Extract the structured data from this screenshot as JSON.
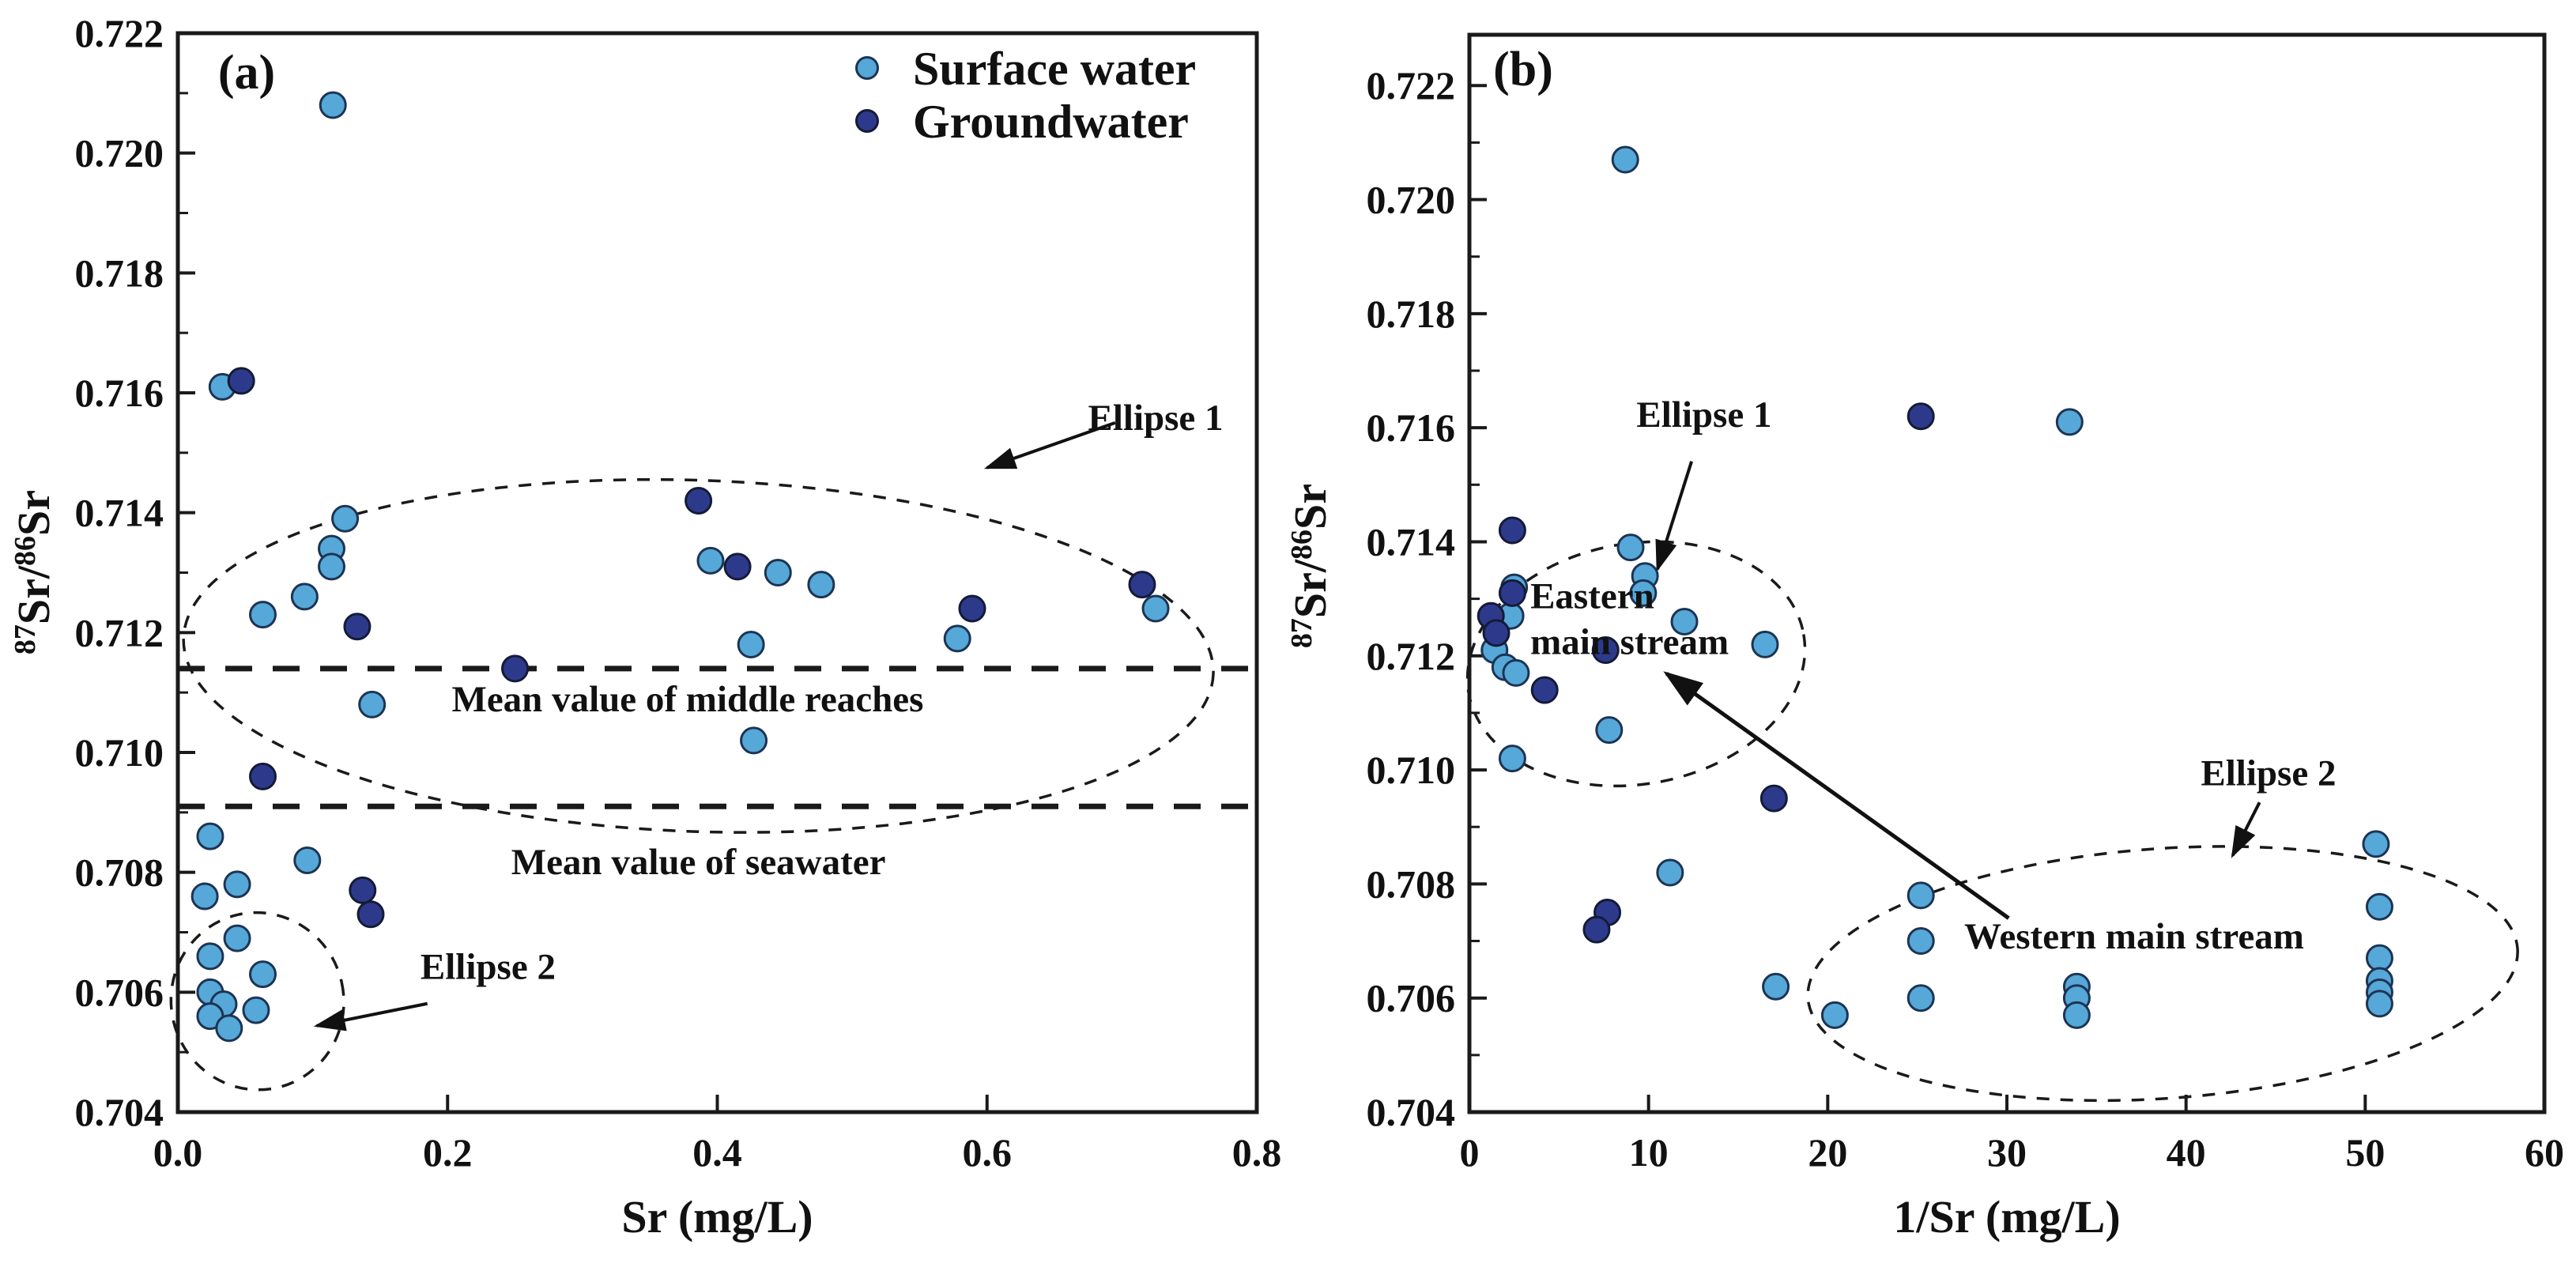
{
  "figure": {
    "background": "#ffffff",
    "colors": {
      "surface_fill": "#55A8D7",
      "surface_stroke": "#1d3454",
      "ground_fill": "#2D3A8C",
      "ground_stroke": "#141B36",
      "axis": "#1a1a1a",
      "dashed_line": "#1a1a1a"
    }
  },
  "legend": {
    "items": [
      {
        "label": "Surface water",
        "series": "surface"
      },
      {
        "label": "Groundwater",
        "series": "ground"
      }
    ],
    "position": "top-right-of-panel-a"
  },
  "chart_data": [
    {
      "panel": "a",
      "type": "scatter",
      "panel_label": "(a)",
      "xlabel": "Sr (mg/L)",
      "ylabel": "87Sr/86Sr",
      "ylabel_parts": [
        "87",
        "Sr/",
        "86",
        "Sr"
      ],
      "xlim": [
        0,
        0.8
      ],
      "ylim": [
        0.704,
        0.722
      ],
      "grid": false,
      "xticks": {
        "values": [
          0,
          0.2,
          0.4,
          0.6,
          0.8
        ],
        "labels": [
          "0.0",
          "0.2",
          "0.4",
          "0.6",
          "0.8"
        ]
      },
      "yticks": {
        "values": [
          0.704,
          0.706,
          0.708,
          0.71,
          0.712,
          0.714,
          0.716,
          0.718,
          0.72,
          0.722
        ],
        "labels": [
          "0.704",
          "0.706",
          "0.708",
          "0.710",
          "0.712",
          "0.714",
          "0.716",
          "0.718",
          "0.720",
          "0.722"
        ]
      },
      "minor_y_step": 0.001,
      "series": [
        {
          "name": "Surface water",
          "color_key": "surface",
          "points": [
            [
              0.115,
              0.7208
            ],
            [
              0.033,
              0.7161
            ],
            [
              0.124,
              0.7139
            ],
            [
              0.114,
              0.7134
            ],
            [
              0.114,
              0.7131
            ],
            [
              0.094,
              0.7126
            ],
            [
              0.063,
              0.7123
            ],
            [
              0.144,
              0.7108
            ],
            [
              0.395,
              0.7132
            ],
            [
              0.445,
              0.713
            ],
            [
              0.477,
              0.7128
            ],
            [
              0.425,
              0.7118
            ],
            [
              0.427,
              0.7102
            ],
            [
              0.578,
              0.7119
            ],
            [
              0.725,
              0.7124
            ],
            [
              0.024,
              0.7086
            ],
            [
              0.096,
              0.7082
            ],
            [
              0.044,
              0.7078
            ],
            [
              0.02,
              0.7076
            ],
            [
              0.044,
              0.7069
            ],
            [
              0.024,
              0.7066
            ],
            [
              0.063,
              0.7063
            ],
            [
              0.024,
              0.706
            ],
            [
              0.034,
              0.7058
            ],
            [
              0.058,
              0.7057
            ],
            [
              0.024,
              0.7056
            ],
            [
              0.038,
              0.7054
            ]
          ]
        },
        {
          "name": "Groundwater",
          "color_key": "ground",
          "points": [
            [
              0.047,
              0.7162
            ],
            [
              0.386,
              0.7142
            ],
            [
              0.415,
              0.7131
            ],
            [
              0.133,
              0.7121
            ],
            [
              0.25,
              0.7114
            ],
            [
              0.063,
              0.7096
            ],
            [
              0.137,
              0.7077
            ],
            [
              0.143,
              0.7073
            ],
            [
              0.589,
              0.7124
            ],
            [
              0.715,
              0.7128
            ]
          ]
        }
      ],
      "ref_lines": [
        {
          "value": 0.7114,
          "label": "Mean value of middle reaches",
          "label_at": [
            0.378,
            0.7109
          ]
        },
        {
          "value": 0.7091,
          "label": "Mean value of seawater",
          "label_at": [
            0.386,
            0.70818
          ]
        }
      ],
      "ellipses": [
        {
          "name": "Ellipse 1",
          "cx": 0.386,
          "cy": 0.71161,
          "rx": 0.382,
          "ry": 0.00293,
          "rot": 2
        },
        {
          "name": "Ellipse 2",
          "cx": 0.059,
          "cy": 0.70585,
          "rx": 0.064,
          "ry": 0.00148,
          "rot": -12
        }
      ],
      "labels": [
        {
          "text": "Ellipse 1",
          "x": 0.725,
          "y": 0.71559,
          "anchor": "middle"
        },
        {
          "text": "Ellipse 2",
          "x": 0.23,
          "y": 0.70643,
          "anchor": "middle"
        }
      ],
      "arrows": [
        {
          "x1": 0.695,
          "y1": 0.7155,
          "x2": 0.6,
          "y2": 0.71475,
          "width": 4
        },
        {
          "x1": 0.185,
          "y1": 0.70581,
          "x2": 0.103,
          "y2": 0.70544,
          "width": 4
        }
      ]
    },
    {
      "panel": "b",
      "type": "scatter",
      "panel_label": "(b)",
      "xlabel": "1/Sr (mg/L)",
      "ylabel": "87Sr/86Sr",
      "ylabel_parts": [
        "87",
        "Sr/",
        "86",
        "Sr"
      ],
      "xlim": [
        0,
        60
      ],
      "ylim": [
        0.704,
        0.72289
      ],
      "grid": false,
      "xticks": {
        "values": [
          0,
          10,
          20,
          30,
          40,
          50,
          60
        ],
        "labels": [
          "0",
          "10",
          "20",
          "30",
          "40",
          "50",
          "60"
        ]
      },
      "yticks": {
        "values": [
          0.704,
          0.706,
          0.708,
          0.71,
          0.712,
          0.714,
          0.716,
          0.718,
          0.72,
          0.722
        ],
        "labels": [
          "0.704",
          "0.706",
          "0.708",
          "0.710",
          "0.712",
          "0.714",
          "0.716",
          "0.718",
          "0.720",
          "0.722"
        ]
      },
      "minor_y_step": 0.001,
      "series": [
        {
          "name": "Surface water",
          "color_key": "surface",
          "points": [
            [
              8.7,
              0.7207
            ],
            [
              33.5,
              0.7161
            ],
            [
              9.0,
              0.7139
            ],
            [
              9.8,
              0.7134
            ],
            [
              9.7,
              0.7131
            ],
            [
              12.0,
              0.7126
            ],
            [
              16.5,
              0.7122
            ],
            [
              7.8,
              0.7107
            ],
            [
              2.5,
              0.7132
            ],
            [
              2.3,
              0.7127
            ],
            [
              1.4,
              0.7121
            ],
            [
              2.0,
              0.7118
            ],
            [
              2.6,
              0.7117
            ],
            [
              2.4,
              0.7102
            ],
            [
              11.2,
              0.7082
            ],
            [
              17.1,
              0.7062
            ],
            [
              20.4,
              0.7057
            ],
            [
              25.2,
              0.7078
            ],
            [
              25.2,
              0.707
            ],
            [
              25.2,
              0.706
            ],
            [
              33.9,
              0.7062
            ],
            [
              33.9,
              0.706
            ],
            [
              33.9,
              0.7057
            ],
            [
              50.6,
              0.7087
            ],
            [
              50.8,
              0.7076
            ],
            [
              50.8,
              0.7067
            ],
            [
              50.8,
              0.7063
            ],
            [
              50.8,
              0.7061
            ],
            [
              50.8,
              0.7059
            ]
          ]
        },
        {
          "name": "Groundwater",
          "color_key": "ground",
          "points": [
            [
              25.2,
              0.7162
            ],
            [
              2.4,
              0.7142
            ],
            [
              2.4,
              0.7131
            ],
            [
              1.2,
              0.7127
            ],
            [
              1.5,
              0.7124
            ],
            [
              7.6,
              0.7121
            ],
            [
              4.2,
              0.7114
            ],
            [
              17.0,
              0.7095
            ],
            [
              7.7,
              0.7075
            ],
            [
              7.1,
              0.7072
            ]
          ]
        }
      ],
      "ref_lines": [],
      "ellipses": [
        {
          "name": "Ellipse 1",
          "cx": 9.31,
          "cy": 0.71186,
          "rx": 9.49,
          "ry": 0.00211,
          "rot": -10
        },
        {
          "name": "Ellipse 2",
          "cx": 38.7,
          "cy": 0.70643,
          "rx": 19.85,
          "ry": 0.00219,
          "rot": -4
        }
      ],
      "labels": [
        {
          "text": "Ellipse 1",
          "x": 13.1,
          "y": 0.71624,
          "anchor": "middle"
        },
        {
          "text": "Ellipse 2",
          "x": 44.6,
          "y": 0.70995,
          "anchor": "middle"
        },
        {
          "text": "Eastern",
          "x": 3.4,
          "y": 0.71306,
          "anchor": "start"
        },
        {
          "text": "main stream",
          "x": 3.4,
          "y": 0.71225,
          "anchor": "start"
        },
        {
          "text": "Western main stream",
          "x": 37.1,
          "y": 0.70709,
          "anchor": "middle"
        }
      ],
      "arrows": [
        {
          "x1": 12.4,
          "y1": 0.71541,
          "x2": 10.5,
          "y2": 0.71352,
          "width": 4
        },
        {
          "x1": 44.1,
          "y1": 0.70943,
          "x2": 42.6,
          "y2": 0.7085,
          "width": 4
        },
        {
          "x1": 30.1,
          "y1": 0.7074,
          "x2": 11.0,
          "y2": 0.71169,
          "width": 5
        }
      ]
    }
  ]
}
